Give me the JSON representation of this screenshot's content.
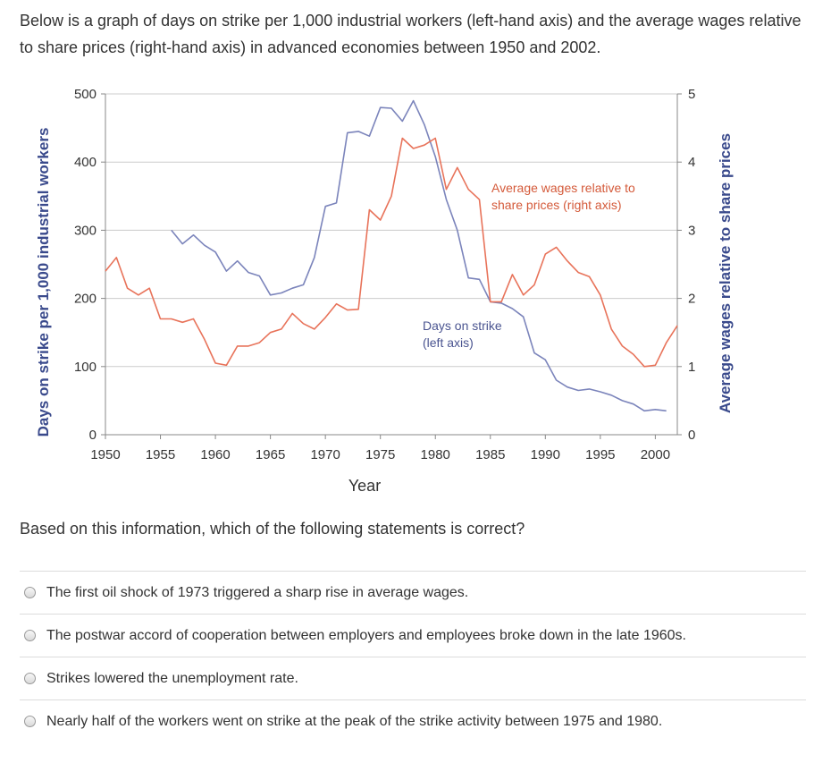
{
  "intro": "Below is a graph of days on strike per 1,000 industrial workers (left-hand axis) and the average wages relative to share prices (right-hand axis) in advanced economies between 1950 and 2002.",
  "question": "Based on this information, which of the following statements is correct?",
  "options": [
    "The first oil shock of 1973 triggered a sharp rise in average wages.",
    "The postwar accord of cooperation between employers and employees broke down in the late 1960s.",
    "Strikes lowered the unemployment rate.",
    "Nearly half of the workers went on strike at the peak of the strike activity between 1975 and 1980."
  ],
  "chart_data": {
    "type": "line",
    "title": "",
    "xlabel": "Year",
    "ylabel_left": "Days on strike per 1,000 industrial workers",
    "ylabel_right": "Average wages relative to share prices",
    "xlim": [
      1950,
      2002
    ],
    "ylim_left": [
      0,
      500
    ],
    "ylim_right": [
      0,
      5
    ],
    "x_ticks": [
      1950,
      1955,
      1960,
      1965,
      1970,
      1975,
      1980,
      1985,
      1990,
      1995,
      2000
    ],
    "y_ticks_left": [
      0,
      100,
      200,
      300,
      400,
      500
    ],
    "y_ticks_right": [
      0,
      1,
      2,
      3,
      4,
      5
    ],
    "colors": {
      "strike": "#7b84bb",
      "wages": "#e8735a",
      "grid": "#cccccc",
      "axis": "#888888"
    },
    "series": [
      {
        "name": "Days on strike (left axis)",
        "axis": "left",
        "x": [
          1956,
          1957,
          1958,
          1959,
          1960,
          1961,
          1962,
          1963,
          1964,
          1965,
          1966,
          1967,
          1968,
          1969,
          1970,
          1971,
          1972,
          1973,
          1974,
          1975,
          1976,
          1977,
          1978,
          1979,
          1980,
          1981,
          1982,
          1983,
          1984,
          1985,
          1986,
          1987,
          1988,
          1989,
          1990,
          1991,
          1992,
          1993,
          1994,
          1995,
          1996,
          1997,
          1998,
          1999,
          2000,
          2001
        ],
        "values": [
          300,
          280,
          293,
          278,
          268,
          240,
          255,
          238,
          233,
          205,
          208,
          215,
          220,
          260,
          335,
          340,
          443,
          445,
          438,
          480,
          479,
          460,
          490,
          455,
          408,
          345,
          300,
          230,
          228,
          195,
          193,
          185,
          173,
          120,
          110,
          80,
          70,
          65,
          67,
          63,
          58,
          50,
          45,
          35,
          37,
          35
        ]
      },
      {
        "name": "Average wages relative to share prices (right axis)",
        "axis": "right",
        "x": [
          1950,
          1951,
          1952,
          1953,
          1954,
          1955,
          1956,
          1957,
          1958,
          1959,
          1960,
          1961,
          1962,
          1963,
          1964,
          1965,
          1966,
          1967,
          1968,
          1969,
          1970,
          1971,
          1972,
          1973,
          1974,
          1975,
          1976,
          1977,
          1978,
          1979,
          1980,
          1981,
          1982,
          1983,
          1984,
          1985,
          1986,
          1987,
          1988,
          1989,
          1990,
          1991,
          1992,
          1993,
          1994,
          1995,
          1996,
          1997,
          1998,
          1999,
          2000,
          2001,
          2002
        ],
        "values": [
          2.4,
          2.6,
          2.15,
          2.05,
          2.15,
          1.7,
          1.7,
          1.65,
          1.7,
          1.4,
          1.05,
          1.02,
          1.3,
          1.3,
          1.35,
          1.5,
          1.55,
          1.78,
          1.63,
          1.55,
          1.72,
          1.92,
          1.83,
          1.84,
          3.3,
          3.15,
          3.5,
          4.35,
          4.2,
          4.25,
          4.35,
          3.6,
          3.92,
          3.6,
          3.45,
          1.95,
          1.95,
          2.35,
          2.05,
          2.2,
          2.65,
          2.75,
          2.55,
          2.38,
          2.32,
          2.05,
          1.55,
          1.3,
          1.18,
          1.0,
          1.02,
          1.35,
          1.6
        ]
      }
    ],
    "annotations": [
      {
        "text": "Average wages relative to",
        "series": "wages"
      },
      {
        "text": "share prices (right axis)",
        "series": "wages"
      },
      {
        "text": "Days on strike",
        "series": "strike"
      },
      {
        "text": "(left axis)",
        "series": "strike"
      }
    ]
  }
}
